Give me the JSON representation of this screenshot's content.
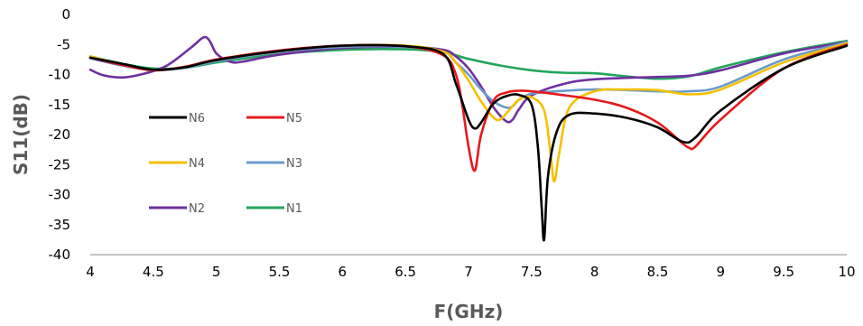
{
  "chart_data": {
    "type": "line",
    "title": "",
    "xlabel": "F(GHz)",
    "ylabel": "S11(dB)",
    "xlim": [
      4,
      10
    ],
    "ylim": [
      -40,
      0
    ],
    "xticks": [
      4,
      4.5,
      5,
      5.5,
      6,
      6.5,
      7,
      7.5,
      8,
      8.5,
      9,
      9.5,
      10
    ],
    "yticks": [
      0,
      -5,
      -10,
      -15,
      -20,
      -25,
      -30,
      -35,
      -40
    ],
    "grid": false,
    "legend_position": "left inside plot",
    "series": [
      {
        "name": "N6",
        "color": "#000000",
        "x": [
          4,
          4.25,
          4.5,
          4.75,
          5,
          5.5,
          6,
          6.5,
          6.8,
          6.9,
          7.0,
          7.05,
          7.1,
          7.2,
          7.3,
          7.4,
          7.5,
          7.55,
          7.58,
          7.6,
          7.63,
          7.7,
          7.8,
          8.0,
          8.25,
          8.5,
          8.7,
          8.8,
          9.0,
          9.5,
          10
        ],
        "y": [
          -7.2,
          -8.2,
          -9.2,
          -8.8,
          -7.6,
          -6.1,
          -5.2,
          -5.3,
          -6.6,
          -11.5,
          -17.5,
          -19.0,
          -18.0,
          -14.8,
          -13.6,
          -13.4,
          -15,
          -22,
          -32,
          -37.5,
          -27,
          -19.5,
          -16.7,
          -16.5,
          -17.2,
          -18.8,
          -21.2,
          -20.5,
          -16,
          -9,
          -5.2
        ]
      },
      {
        "name": "N5",
        "color": "#e41a1c",
        "x": [
          4,
          4.25,
          4.5,
          4.75,
          5,
          5.5,
          6,
          6.5,
          6.8,
          6.9,
          6.95,
          7.0,
          7.05,
          7.1,
          7.2,
          7.3,
          7.4,
          7.5,
          7.7,
          8.0,
          8.25,
          8.5,
          8.7,
          8.75,
          8.8,
          9.0,
          9.5,
          10
        ],
        "y": [
          -7.2,
          -8.4,
          -9.3,
          -8.7,
          -7.5,
          -6.0,
          -5.2,
          -5.3,
          -6.8,
          -10,
          -15,
          -22,
          -26,
          -20,
          -14.3,
          -13,
          -12.7,
          -12.8,
          -13.3,
          -14.2,
          -15.5,
          -18,
          -21.5,
          -22.2,
          -22,
          -17.5,
          -9,
          -5.0
        ]
      },
      {
        "name": "N4",
        "color": "#f5c000",
        "x": [
          4,
          4.25,
          4.5,
          4.75,
          5,
          5.5,
          6,
          6.5,
          6.8,
          6.9,
          7.0,
          7.1,
          7.2,
          7.25,
          7.3,
          7.4,
          7.5,
          7.6,
          7.65,
          7.68,
          7.72,
          7.8,
          8.0,
          8.25,
          8.5,
          8.75,
          9.0,
          9.5,
          10
        ],
        "y": [
          -7.0,
          -8.3,
          -9.2,
          -8.8,
          -7.6,
          -6.1,
          -5.2,
          -5.2,
          -6.2,
          -8,
          -11,
          -14.5,
          -17.2,
          -17.5,
          -16.5,
          -14.2,
          -13.8,
          -16,
          -23,
          -27.8,
          -23,
          -15.5,
          -12.8,
          -12.5,
          -12.6,
          -13.3,
          -12.5,
          -8,
          -4.8
        ]
      },
      {
        "name": "N3",
        "color": "#6a9bcc",
        "x": [
          4,
          4.25,
          4.5,
          4.75,
          5,
          5.5,
          6,
          6.5,
          6.8,
          6.9,
          7.0,
          7.1,
          7.2,
          7.3,
          7.35,
          7.4,
          7.5,
          7.7,
          8.0,
          8.25,
          8.5,
          8.75,
          9.0,
          9.5,
          10
        ],
        "y": [
          -7.3,
          -8.5,
          -9.3,
          -8.9,
          -7.8,
          -6.2,
          -5.4,
          -5.4,
          -6.2,
          -8,
          -10,
          -12.5,
          -14.5,
          -15.5,
          -15.3,
          -14.2,
          -13.2,
          -12.8,
          -12.5,
          -12.6,
          -12.8,
          -12.8,
          -12,
          -7.5,
          -4.6
        ]
      },
      {
        "name": "N2",
        "color": "#7030a0",
        "x": [
          4,
          4.1,
          4.25,
          4.4,
          4.6,
          4.8,
          4.9,
          4.95,
          5.0,
          5.1,
          5.2,
          5.5,
          6,
          6.5,
          6.8,
          6.9,
          7.0,
          7.1,
          7.2,
          7.3,
          7.35,
          7.4,
          7.5,
          7.75,
          8.0,
          8.5,
          8.75,
          9.0,
          9.5,
          10
        ],
        "y": [
          -9.2,
          -10.1,
          -10.5,
          -10,
          -8.6,
          -5.5,
          -3.8,
          -4.5,
          -6.5,
          -7.8,
          -7.9,
          -6.7,
          -5.6,
          -5.4,
          -5.9,
          -7,
          -9,
          -12,
          -15.5,
          -17.8,
          -17.5,
          -15.8,
          -13.5,
          -11.6,
          -10.8,
          -10.4,
          -10.2,
          -9.3,
          -6.5,
          -4.6
        ]
      },
      {
        "name": "N1",
        "color": "#21a65b",
        "x": [
          4,
          4.25,
          4.5,
          4.75,
          5,
          5.5,
          6,
          6.5,
          6.8,
          7.0,
          7.25,
          7.5,
          7.75,
          8.0,
          8.25,
          8.5,
          8.75,
          9.0,
          9.5,
          10
        ],
        "y": [
          -7.0,
          -8.2,
          -9.0,
          -8.9,
          -8.0,
          -6.6,
          -5.9,
          -5.8,
          -6.3,
          -7.4,
          -8.5,
          -9.3,
          -9.7,
          -9.8,
          -10.3,
          -10.7,
          -10.3,
          -8.8,
          -6.3,
          -4.4
        ]
      }
    ]
  }
}
